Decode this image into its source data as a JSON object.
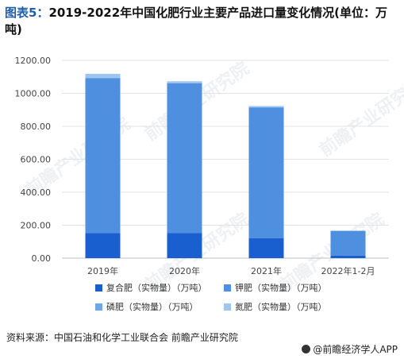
{
  "title": {
    "prefix": "图表5：",
    "text": "2019-2022年中国化肥行业主要产品进口量变化情况(单位：万吨)"
  },
  "source": "资料来源：中国石油和化学工业联合会 前瞻产业研究院",
  "footer_brand": "@前瞻经济学人APP",
  "watermark_text": "前瞻产业研究院",
  "colors": {
    "compound": "#1a5fd0",
    "potash": "#4f8fdf",
    "phosphate": "#6ea6e8",
    "nitrogen": "#9ec4f0"
  },
  "chart_data": {
    "type": "bar",
    "stacked": true,
    "categories": [
      "2019年",
      "2020年",
      "2021年",
      "2022年1-2月"
    ],
    "ylim": [
      0,
      1200
    ],
    "yticks": [
      "0.00",
      "200.00",
      "400.00",
      "600.00",
      "800.00",
      "1000.00",
      "1200.00"
    ],
    "grid": true,
    "legend_position": "bottom",
    "series": [
      {
        "name": "复合肥（实物量）（万吨）",
        "values": [
          153,
          152,
          122,
          16
        ]
      },
      {
        "name": "钾肥（实物量）（万吨）",
        "values": [
          938,
          909,
          792,
          148
        ]
      },
      {
        "name": "磷肥（实物量）（万吨）",
        "values": [
          3,
          3,
          2,
          1
        ]
      },
      {
        "name": "氮肥（实物量）（万吨）",
        "values": [
          24,
          9,
          7,
          3
        ]
      }
    ]
  }
}
